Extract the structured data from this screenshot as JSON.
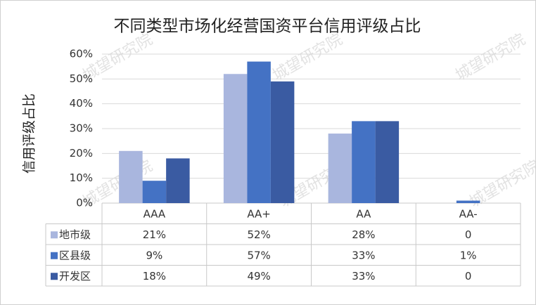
{
  "chart_data": {
    "type": "bar",
    "title": "不同类型市场化经营国资平台信用评级占比",
    "y_label": "信用评级占比",
    "watermark": "城望研究院",
    "categories": [
      "AAA",
      "AA+",
      "AA",
      "AA-"
    ],
    "series": [
      {
        "name": "地市级",
        "color": "#a9b6de",
        "values": [
          21,
          52,
          28,
          0
        ],
        "value_labels": [
          "21%",
          "52%",
          "28%",
          "0"
        ]
      },
      {
        "name": "区县级",
        "color": "#4472c4",
        "values": [
          9,
          57,
          33,
          1
        ],
        "value_labels": [
          "9%",
          "57%",
          "33%",
          "1%"
        ]
      },
      {
        "name": "开发区",
        "color": "#3a5ba2",
        "values": [
          18,
          49,
          33,
          0
        ],
        "value_labels": [
          "18%",
          "49%",
          "33%",
          "0"
        ]
      }
    ],
    "ylim": [
      0,
      60
    ],
    "yticks": [
      {
        "value": 0,
        "label": "0%"
      },
      {
        "value": 10,
        "label": "10%"
      },
      {
        "value": 20,
        "label": "20%"
      },
      {
        "value": 30,
        "label": "30%"
      },
      {
        "value": 40,
        "label": "40%"
      },
      {
        "value": 50,
        "label": "50%"
      },
      {
        "value": 60,
        "label": "60%"
      }
    ],
    "grid": true
  }
}
